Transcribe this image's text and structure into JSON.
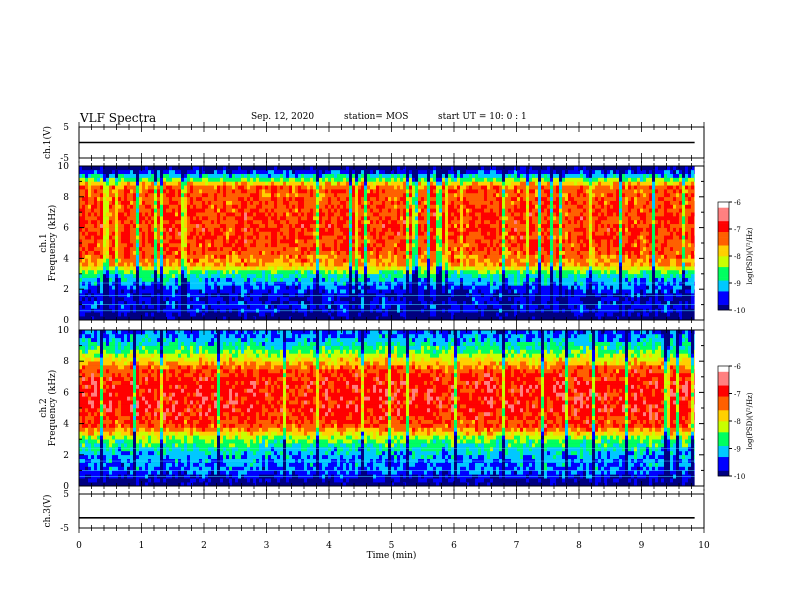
{
  "header": {
    "title": "VLF Spectra",
    "date": "Sep. 12, 2020",
    "station": "station= MOS",
    "start_time": "start  UT =   10: 0  : 1"
  },
  "chart_data": [
    {
      "type": "line",
      "name": "ch1-waveform",
      "ylabel": "ch.1(V)",
      "yticks": [
        "5",
        "-5"
      ],
      "ylim": [
        -5,
        5
      ],
      "xlim": [
        0,
        10
      ],
      "x": [
        0,
        9.85
      ],
      "y": [
        0,
        0
      ]
    },
    {
      "type": "heatmap",
      "name": "ch1-spectrogram",
      "ylabel": "ch.1\nFrequency (kHz)",
      "yticks": [
        "0",
        "2",
        "4",
        "6",
        "8",
        "10"
      ],
      "ylim": [
        0,
        10
      ],
      "xlim": [
        0,
        10
      ],
      "data_xmax": 9.85,
      "z_range": [
        -10,
        -6
      ],
      "colorbar_label": "log(PSD)(V²/Hz)",
      "colorbar_ticks": [
        "-6",
        "-7",
        "-8",
        "-9",
        "-10"
      ],
      "band_profile": [
        {
          "f": 0.0,
          "level": -10
        },
        {
          "f": 0.8,
          "level": -9.4
        },
        {
          "f": 1.5,
          "level": -9.6
        },
        {
          "f": 2.2,
          "level": -9.2
        },
        {
          "f": 3.0,
          "level": -8.6
        },
        {
          "f": 3.6,
          "level": -7.4
        },
        {
          "f": 4.5,
          "level": -7.0
        },
        {
          "f": 6.0,
          "level": -6.9
        },
        {
          "f": 7.5,
          "level": -7.0
        },
        {
          "f": 8.7,
          "level": -7.1
        },
        {
          "f": 9.2,
          "level": -8.5
        },
        {
          "f": 9.6,
          "level": -9.3
        },
        {
          "f": 10.0,
          "level": -10
        }
      ]
    },
    {
      "type": "heatmap",
      "name": "ch2-spectrogram",
      "ylabel": "ch.2\nFrequency (kHz)",
      "yticks": [
        "0",
        "2",
        "4",
        "6",
        "8",
        "10"
      ],
      "ylim": [
        0,
        10
      ],
      "xlim": [
        0,
        10
      ],
      "data_xmax": 9.85,
      "z_range": [
        -10,
        -6
      ],
      "colorbar_label": "log(PSD)(V²/Hz)",
      "colorbar_ticks": [
        "-6",
        "-7",
        "-8",
        "-9",
        "-10"
      ],
      "band_profile": [
        {
          "f": 0.0,
          "level": -10
        },
        {
          "f": 1.0,
          "level": -9.2
        },
        {
          "f": 2.0,
          "level": -9.0
        },
        {
          "f": 3.0,
          "level": -8.3
        },
        {
          "f": 3.8,
          "level": -7.0
        },
        {
          "f": 5.0,
          "level": -6.7
        },
        {
          "f": 6.5,
          "level": -6.7
        },
        {
          "f": 7.5,
          "level": -7.0
        },
        {
          "f": 8.3,
          "level": -8.0
        },
        {
          "f": 9.0,
          "level": -8.7
        },
        {
          "f": 10.0,
          "level": -9.3
        }
      ]
    },
    {
      "type": "line",
      "name": "ch3-waveform",
      "ylabel": "ch.3(V)",
      "yticks": [
        "5",
        "-5"
      ],
      "ylim": [
        -5,
        5
      ],
      "xlim": [
        0,
        10
      ],
      "x": [
        0,
        9.85
      ],
      "y": [
        -2,
        -2
      ]
    }
  ],
  "x_axis": {
    "label": "Time  (min)",
    "ticks": [
      "0",
      "1",
      "2",
      "3",
      "4",
      "5",
      "6",
      "7",
      "8",
      "9",
      "10"
    ]
  },
  "colormap": [
    "#000080",
    "#0000ff",
    "#00c8ff",
    "#00ff60",
    "#c8ff00",
    "#ffd000",
    "#ff6000",
    "#ff0000",
    "#ff8080",
    "#ffffff"
  ]
}
